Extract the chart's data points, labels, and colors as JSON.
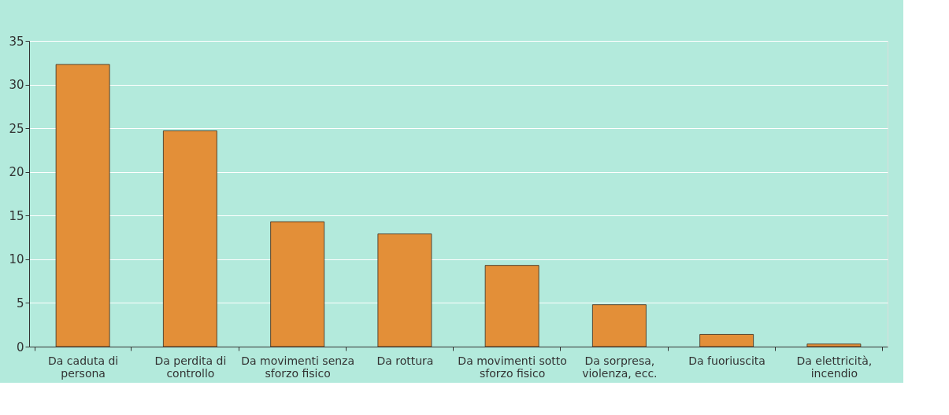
{
  "chart_data": {
    "type": "bar",
    "categories": [
      "Da caduta di persona",
      "Da perdita di controllo",
      "Da movimenti senza sforzo fisico",
      "Da rottura",
      "Da movimenti sotto sforzo fisico",
      "Da sorpresa, violenza, ecc.",
      "Da fuoriuscita",
      "Da elettricità, incendio"
    ],
    "values": [
      32.3,
      24.7,
      14.3,
      12.9,
      9.3,
      4.8,
      1.4,
      0.3
    ],
    "color": "#e38f38",
    "ylim": [
      0,
      35
    ],
    "yticks": [
      0,
      5,
      10,
      15,
      20,
      25,
      30,
      35
    ],
    "grid": "y"
  }
}
